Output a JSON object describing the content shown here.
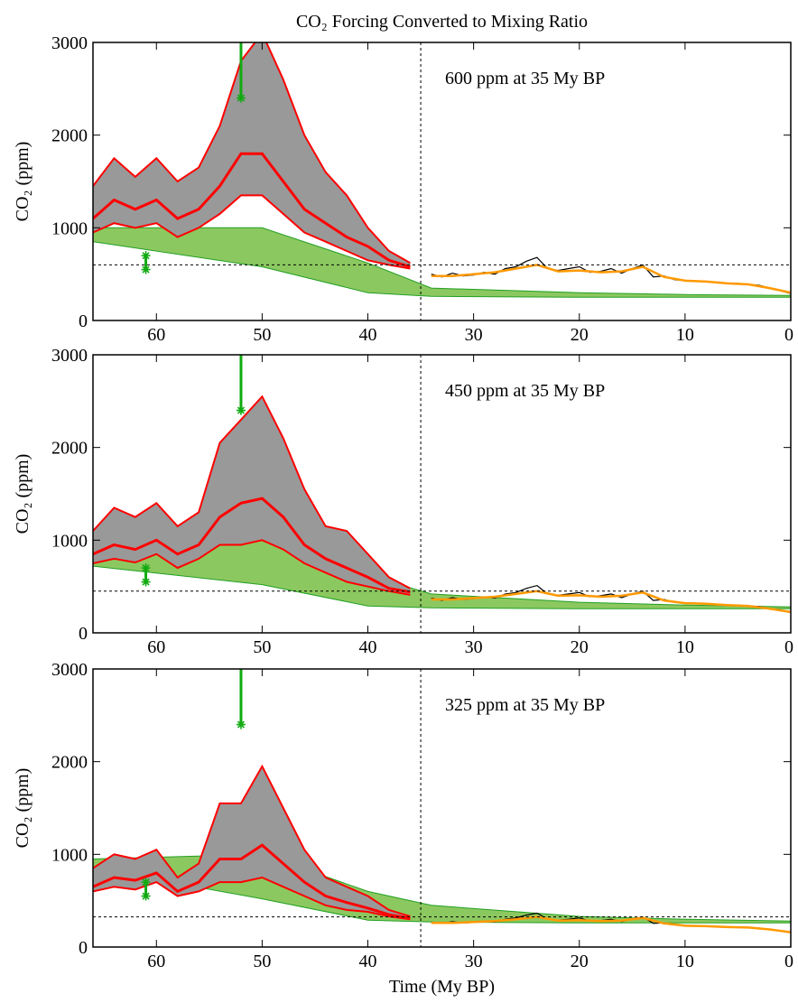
{
  "chart_data": [
    {
      "type": "line",
      "title": "CO₂ Forcing Converted to Mixing Ratio",
      "ylabel": "CO₂ (ppm)",
      "annotation": "600 ppm at 35 My BP",
      "xlim": [
        66,
        0
      ],
      "ylim": [
        0,
        3000
      ],
      "xticks": [
        60,
        50,
        40,
        30,
        20,
        10,
        0
      ],
      "yticks": [
        0,
        1000,
        2000,
        3000
      ],
      "hline": 600,
      "vline": 35,
      "model": {
        "color": "#ff0000",
        "fill": "#999999",
        "x": [
          66,
          64,
          62,
          60,
          58,
          56,
          54,
          52,
          50,
          48,
          46,
          44,
          42,
          40,
          38,
          36
        ],
        "upper": [
          1450,
          1750,
          1550,
          1750,
          1500,
          1650,
          2100,
          2800,
          3100,
          2600,
          2000,
          1600,
          1350,
          1000,
          750,
          620
        ],
        "median": [
          1100,
          1300,
          1200,
          1300,
          1100,
          1200,
          1450,
          1800,
          1800,
          1500,
          1200,
          1050,
          900,
          800,
          650,
          580
        ],
        "lower": [
          950,
          1050,
          1000,
          1050,
          900,
          1000,
          1150,
          1350,
          1350,
          1150,
          950,
          850,
          750,
          650,
          600,
          560
        ]
      },
      "band": {
        "color": "#22a022",
        "fill": "#8cc860",
        "x": [
          66,
          50,
          40,
          34,
          20,
          10,
          0
        ],
        "upper": [
          1000,
          1000,
          620,
          350,
          300,
          280,
          270
        ],
        "lower": [
          850,
          580,
          300,
          260,
          250,
          250,
          250
        ]
      },
      "record": {
        "color": "#000000",
        "x": [
          34,
          33,
          32,
          31,
          30,
          29,
          28,
          27,
          26,
          25,
          24,
          23,
          22,
          21,
          20,
          19,
          18,
          17,
          16,
          15,
          14,
          13,
          12,
          11,
          10,
          9,
          8,
          7,
          6,
          5,
          4,
          3,
          2,
          1,
          0
        ],
        "values": [
          500,
          470,
          510,
          480,
          490,
          520,
          500,
          560,
          580,
          640,
          680,
          560,
          540,
          560,
          580,
          520,
          530,
          560,
          510,
          560,
          600,
          470,
          480,
          440,
          430,
          420,
          420,
          410,
          400,
          400,
          390,
          380,
          350,
          320,
          290
        ]
      },
      "smoothed": {
        "color": "#ff9900",
        "x": [
          34,
          32,
          30,
          28,
          26,
          24,
          22,
          20,
          18,
          16,
          14,
          12,
          10,
          8,
          6,
          4,
          2,
          0
        ],
        "values": [
          480,
          480,
          500,
          520,
          560,
          600,
          530,
          540,
          520,
          530,
          580,
          470,
          430,
          420,
          400,
          390,
          350,
          300
        ]
      },
      "estimates": {
        "color": "#11aa11",
        "x": [
          61,
          61,
          52
        ],
        "values": [
          700,
          550,
          2400
        ],
        "upper": [
          700,
          700,
          3500
        ]
      }
    },
    {
      "type": "line",
      "ylabel": "CO₂ (ppm)",
      "annotation": "450 ppm at 35 My BP",
      "xlim": [
        66,
        0
      ],
      "ylim": [
        0,
        3000
      ],
      "xticks": [
        60,
        50,
        40,
        30,
        20,
        10,
        0
      ],
      "yticks": [
        0,
        1000,
        2000,
        3000
      ],
      "hline": 450,
      "vline": 35,
      "model": {
        "color": "#ff0000",
        "fill": "#999999",
        "x": [
          66,
          64,
          62,
          60,
          58,
          56,
          54,
          52,
          50,
          48,
          46,
          44,
          42,
          40,
          38,
          36
        ],
        "upper": [
          1100,
          1350,
          1250,
          1400,
          1150,
          1300,
          2050,
          2300,
          2550,
          2100,
          1550,
          1150,
          1100,
          850,
          600,
          480
        ],
        "median": [
          850,
          950,
          900,
          1000,
          850,
          950,
          1250,
          1400,
          1450,
          1250,
          950,
          800,
          700,
          600,
          480,
          440
        ],
        "lower": [
          750,
          800,
          760,
          850,
          700,
          800,
          950,
          950,
          1000,
          900,
          750,
          650,
          550,
          500,
          450,
          410
        ]
      },
      "band": {
        "color": "#22a022",
        "fill": "#8cc860",
        "x": [
          66,
          50,
          40,
          34,
          20,
          10,
          0
        ],
        "upper": [
          800,
          1000,
          620,
          420,
          330,
          300,
          280
        ],
        "lower": [
          720,
          520,
          290,
          270,
          260,
          260,
          260
        ]
      },
      "record": {
        "color": "#000000",
        "x": [
          34,
          33,
          32,
          31,
          30,
          29,
          28,
          27,
          26,
          25,
          24,
          23,
          22,
          21,
          20,
          19,
          18,
          17,
          16,
          15,
          14,
          13,
          12,
          11,
          10,
          9,
          8,
          7,
          6,
          5,
          4,
          3,
          2,
          1,
          0
        ],
        "values": [
          375,
          350,
          380,
          360,
          370,
          390,
          375,
          420,
          435,
          480,
          510,
          420,
          405,
          420,
          435,
          390,
          400,
          420,
          380,
          420,
          450,
          350,
          360,
          330,
          320,
          315,
          315,
          310,
          300,
          300,
          290,
          285,
          260,
          240,
          220
        ]
      },
      "smoothed": {
        "color": "#ff9900",
        "x": [
          34,
          32,
          30,
          28,
          26,
          24,
          22,
          20,
          18,
          16,
          14,
          12,
          10,
          8,
          6,
          4,
          2,
          0
        ],
        "values": [
          360,
          360,
          375,
          390,
          420,
          450,
          400,
          405,
          390,
          400,
          435,
          350,
          320,
          315,
          300,
          290,
          260,
          225
        ]
      },
      "estimates": {
        "color": "#11aa11",
        "x": [
          61,
          61,
          52
        ],
        "values": [
          700,
          550,
          2400
        ],
        "upper": [
          700,
          700,
          3500
        ]
      }
    },
    {
      "type": "line",
      "ylabel": "CO₂ (ppm)",
      "xlabel": "Time (My BP)",
      "annotation": "325 ppm at 35 My BP",
      "xlim": [
        66,
        0
      ],
      "ylim": [
        0,
        3000
      ],
      "xticks": [
        60,
        50,
        40,
        30,
        20,
        10,
        0
      ],
      "yticks": [
        0,
        1000,
        2000,
        3000
      ],
      "hline": 325,
      "vline": 35,
      "model": {
        "color": "#ff0000",
        "fill": "#999999",
        "x": [
          66,
          64,
          62,
          60,
          58,
          56,
          54,
          52,
          50,
          48,
          46,
          44,
          42,
          40,
          38,
          36
        ],
        "upper": [
          850,
          1000,
          950,
          1050,
          750,
          900,
          1550,
          1550,
          1950,
          1500,
          1050,
          750,
          650,
          550,
          400,
          330
        ],
        "median": [
          650,
          750,
          720,
          800,
          600,
          700,
          950,
          950,
          1100,
          900,
          700,
          550,
          480,
          420,
          350,
          310
        ],
        "lower": [
          600,
          650,
          620,
          700,
          550,
          600,
          700,
          700,
          750,
          650,
          550,
          450,
          400,
          380,
          330,
          300
        ]
      },
      "band": {
        "color": "#22a022",
        "fill": "#8cc860",
        "x": [
          66,
          50,
          40,
          34,
          20,
          10,
          0
        ],
        "upper": [
          950,
          1000,
          600,
          450,
          330,
          300,
          280
        ],
        "lower": [
          850,
          520,
          290,
          270,
          260,
          260,
          260
        ]
      },
      "record": {
        "color": "#000000",
        "x": [
          34,
          33,
          32,
          31,
          30,
          29,
          28,
          27,
          26,
          25,
          24,
          23,
          22,
          21,
          20,
          19,
          18,
          17,
          16,
          15,
          14,
          13,
          12,
          11,
          10,
          9,
          8,
          7,
          6,
          5,
          4,
          3,
          2,
          1,
          0
        ],
        "values": [
          270,
          255,
          275,
          260,
          265,
          280,
          270,
          300,
          315,
          345,
          365,
          300,
          290,
          300,
          315,
          280,
          285,
          300,
          275,
          300,
          325,
          255,
          260,
          240,
          230,
          225,
          225,
          220,
          215,
          215,
          210,
          205,
          190,
          175,
          155
        ]
      },
      "smoothed": {
        "color": "#ff9900",
        "x": [
          34,
          32,
          30,
          28,
          26,
          24,
          22,
          20,
          18,
          16,
          14,
          12,
          10,
          8,
          6,
          4,
          2,
          0
        ],
        "values": [
          260,
          260,
          270,
          280,
          300,
          325,
          285,
          290,
          280,
          285,
          315,
          255,
          230,
          225,
          215,
          210,
          190,
          160
        ]
      },
      "estimates": {
        "color": "#11aa11",
        "x": [
          61,
          61,
          52
        ],
        "values": [
          700,
          550,
          2400
        ],
        "upper": [
          700,
          700,
          3500
        ]
      }
    }
  ]
}
